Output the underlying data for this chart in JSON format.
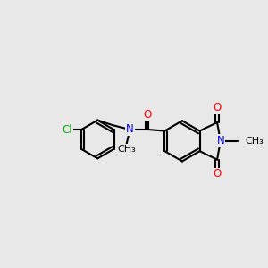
{
  "background_color": "#e8e8e8",
  "bond_color": "#000000",
  "bond_width": 1.5,
  "atom_colors": {
    "O": "#ff0000",
    "N": "#0000ff",
    "Cl": "#00aa00",
    "C": "#000000"
  },
  "font_size": 8.5
}
